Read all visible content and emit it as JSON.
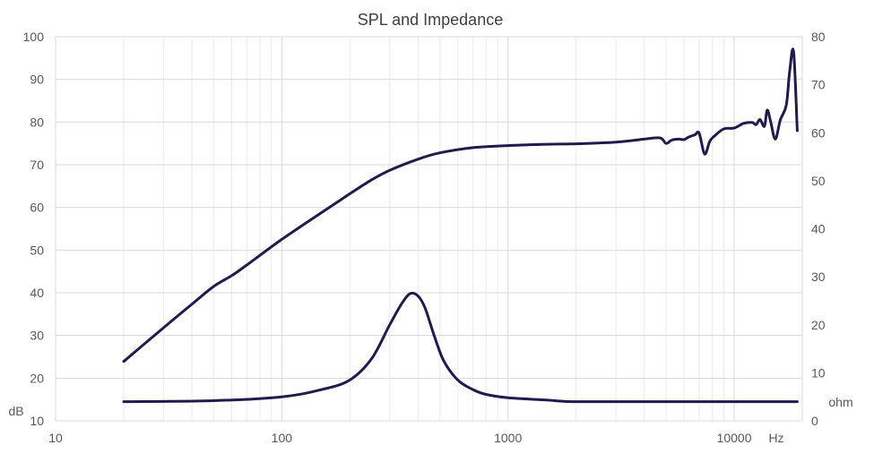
{
  "chart_data": {
    "type": "line",
    "title": "SPL and Impedance",
    "x_scale": "log",
    "x_unit_label": "Hz",
    "xlim": [
      10,
      20000
    ],
    "x_ticks": [
      10,
      100,
      1000,
      10000
    ],
    "x_tick_labels": [
      "10",
      "100",
      "1000",
      "10000"
    ],
    "y_left_label": "dB",
    "y_left_lim": [
      10,
      100
    ],
    "y_left_ticks": [
      "10",
      "20",
      "30",
      "40",
      "50",
      "60",
      "70",
      "80",
      "90",
      "100"
    ],
    "y_right_label": "ohm",
    "y_right_lim": [
      0,
      80
    ],
    "y_right_ticks": [
      "0",
      "10",
      "20",
      "30",
      "40",
      "50",
      "60",
      "70",
      "80"
    ],
    "grid": true,
    "line_color": "#1f1b4d",
    "grid_color": "#d9d9d9",
    "series": [
      {
        "axis": "left",
        "x": [
          20,
          30,
          40,
          50,
          60,
          70,
          100,
          150,
          200,
          250,
          300,
          400,
          500,
          700,
          1000,
          1500,
          2000,
          3000,
          4000,
          4700,
          5000,
          5300,
          5700,
          6000,
          6300,
          6700,
          7000,
          7400,
          7800,
          8200,
          9000,
          10000,
          11000,
          12000,
          12500,
          13000,
          13600,
          14000,
          14500,
          15200,
          16000,
          17000,
          17600,
          18300,
          19000
        ],
        "y": [
          23.9,
          31.8,
          37.3,
          41.5,
          44.0,
          46.5,
          52.5,
          58.8,
          63.2,
          66.5,
          68.7,
          71.3,
          72.8,
          74.0,
          74.5,
          74.8,
          74.9,
          75.3,
          76.0,
          76.3,
          75.0,
          75.8,
          76.0,
          75.9,
          76.5,
          77.0,
          77.4,
          72.5,
          75.5,
          76.8,
          78.4,
          78.6,
          79.7,
          79.9,
          79.4,
          80.6,
          79.0,
          82.8,
          80.0,
          76.0,
          80.5,
          84.0,
          92.0,
          96.5,
          78.0
        ]
      },
      {
        "axis": "right",
        "x": [
          20,
          50,
          100,
          150,
          200,
          250,
          300,
          340,
          370,
          400,
          430,
          470,
          520,
          600,
          700,
          800,
          1000,
          1500,
          2000,
          5000,
          10000,
          19000
        ],
        "y": [
          4.0,
          4.2,
          5.0,
          6.5,
          8.5,
          13.0,
          20.0,
          24.5,
          26.5,
          26.0,
          23.5,
          18.0,
          12.5,
          8.5,
          6.5,
          5.5,
          4.8,
          4.3,
          4.0,
          4.0,
          4.0,
          4.0
        ]
      }
    ]
  }
}
